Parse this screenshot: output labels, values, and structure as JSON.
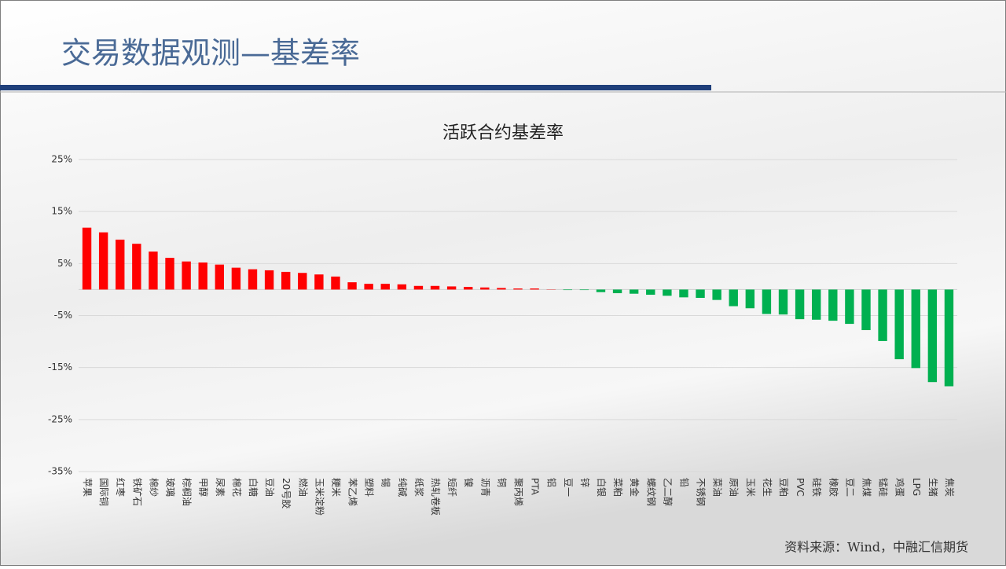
{
  "slide_title": "交易数据观测—基差率",
  "source": "资料来源：Wind，中融汇信期货",
  "chart_data": {
    "type": "bar",
    "title": "活跃合约基差率",
    "categories": [
      "苹果",
      "国际铜",
      "红枣",
      "铁矿石",
      "棉纱",
      "玻璃",
      "棕榈油",
      "甲醇",
      "尿素",
      "棉花",
      "白糖",
      "豆油",
      "20号胶",
      "燃油",
      "玉米淀粉",
      "粳米",
      "苯乙烯",
      "塑料",
      "锡",
      "纯碱",
      "纸浆",
      "热轧卷板",
      "短纤",
      "镍",
      "沥青",
      "铜",
      "聚丙烯",
      "PTA",
      "铝",
      "豆一",
      "锌",
      "白银",
      "菜粕",
      "黄金",
      "螺纹钢",
      "乙二醇",
      "铅",
      "不锈钢",
      "菜油",
      "原油",
      "玉米",
      "花生",
      "豆粕",
      "PVC",
      "硅铁",
      "橡胶",
      "豆二",
      "焦煤",
      "锰硅",
      "鸡蛋",
      "LPG",
      "生猪",
      "焦炭"
    ],
    "values": [
      11.9,
      11.0,
      9.6,
      8.8,
      7.3,
      6.1,
      5.4,
      5.2,
      4.8,
      4.2,
      3.9,
      3.7,
      3.4,
      3.2,
      2.9,
      2.5,
      1.4,
      1.1,
      1.1,
      1.0,
      0.7,
      0.7,
      0.6,
      0.5,
      0.4,
      0.3,
      0.2,
      0.2,
      0.05,
      -0.1,
      -0.1,
      -0.5,
      -0.7,
      -0.8,
      -1.0,
      -1.2,
      -1.5,
      -1.6,
      -2.0,
      -3.2,
      -3.6,
      -4.7,
      -4.8,
      -5.7,
      -5.8,
      -6.0,
      -6.6,
      -7.8,
      -9.9,
      -13.4,
      -15.1,
      -17.8,
      -18.6
    ],
    "positive_color": "#ff0000",
    "negative_color": "#00b050",
    "ylim": [
      -35,
      25
    ],
    "yticks": [
      {
        "value": 25,
        "label": "25%"
      },
      {
        "value": 15,
        "label": "15%"
      },
      {
        "value": 5,
        "label": "5%"
      },
      {
        "value": -5,
        "label": "-5%"
      },
      {
        "value": -15,
        "label": "-15%"
      },
      {
        "value": -25,
        "label": "-25%"
      },
      {
        "value": -35,
        "label": "-35%"
      }
    ],
    "grid": true
  }
}
